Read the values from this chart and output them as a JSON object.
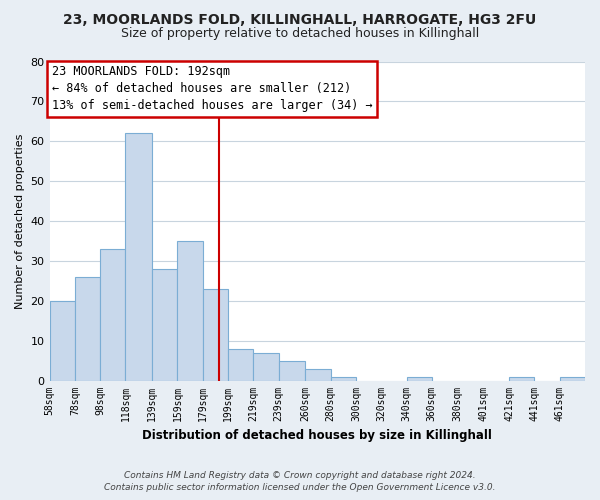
{
  "title1": "23, MOORLANDS FOLD, KILLINGHALL, HARROGATE, HG3 2FU",
  "title2": "Size of property relative to detached houses in Killinghall",
  "xlabel": "Distribution of detached houses by size in Killinghall",
  "ylabel": "Number of detached properties",
  "bar_edges": [
    58,
    78,
    98,
    118,
    139,
    159,
    179,
    199,
    219,
    239,
    260,
    280,
    300,
    320,
    340,
    360,
    380,
    401,
    421,
    441,
    461,
    481
  ],
  "bar_heights": [
    20,
    26,
    33,
    62,
    28,
    35,
    23,
    8,
    7,
    5,
    3,
    1,
    0,
    0,
    1,
    0,
    0,
    0,
    1,
    0,
    1
  ],
  "bar_color": "#c8d8eb",
  "bar_edge_color": "#7badd4",
  "vline_x": 192,
  "vline_color": "#cc0000",
  "ylim": [
    0,
    80
  ],
  "yticks": [
    0,
    10,
    20,
    30,
    40,
    50,
    60,
    70,
    80
  ],
  "tick_labels": [
    "58sqm",
    "78sqm",
    "98sqm",
    "118sqm",
    "139sqm",
    "159sqm",
    "179sqm",
    "199sqm",
    "219sqm",
    "239sqm",
    "260sqm",
    "280sqm",
    "300sqm",
    "320sqm",
    "340sqm",
    "360sqm",
    "380sqm",
    "401sqm",
    "421sqm",
    "441sqm",
    "461sqm"
  ],
  "annotation_title": "23 MOORLANDS FOLD: 192sqm",
  "annotation_line1": "← 84% of detached houses are smaller (212)",
  "annotation_line2": "13% of semi-detached houses are larger (34) →",
  "footer1": "Contains HM Land Registry data © Crown copyright and database right 2024.",
  "footer2": "Contains public sector information licensed under the Open Government Licence v3.0.",
  "background_color": "#e8eef4",
  "plot_bg_color": "#ffffff",
  "grid_color": "#c8d4de",
  "title1_fontsize": 10,
  "title2_fontsize": 9,
  "xlabel_fontsize": 8.5,
  "ylabel_fontsize": 8,
  "tick_fontsize": 7,
  "ytick_fontsize": 8,
  "annotation_box_color": "#cc0000",
  "annotation_fontsize": 8.5
}
